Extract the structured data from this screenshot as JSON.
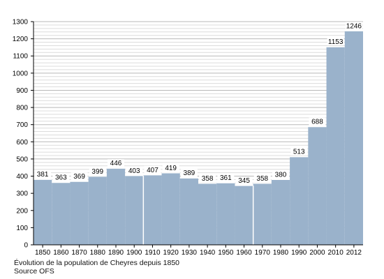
{
  "chart_data": {
    "type": "bar",
    "categories": [
      "1850",
      "1860",
      "1870",
      "1880",
      "1890",
      "1900",
      "1910",
      "1920",
      "1930",
      "1940",
      "1950",
      "1960",
      "1970",
      "1980",
      "1990",
      "2000",
      "2010",
      "2012"
    ],
    "values": [
      381,
      363,
      369,
      399,
      446,
      403,
      407,
      419,
      389,
      358,
      361,
      345,
      358,
      380,
      513,
      688,
      1153,
      1246
    ],
    "ylim": [
      0,
      1300
    ],
    "yticks": [
      0,
      100,
      200,
      300,
      400,
      500,
      600,
      700,
      800,
      900,
      1000,
      1100,
      1200,
      1300
    ],
    "bar_color": "#9ab2cb",
    "grid": true,
    "title": "",
    "xlabel": "",
    "ylabel": ""
  },
  "caption": {
    "line1": "Évolution de la population de Cheyres depuis 1850",
    "line2": "Source OFS"
  }
}
